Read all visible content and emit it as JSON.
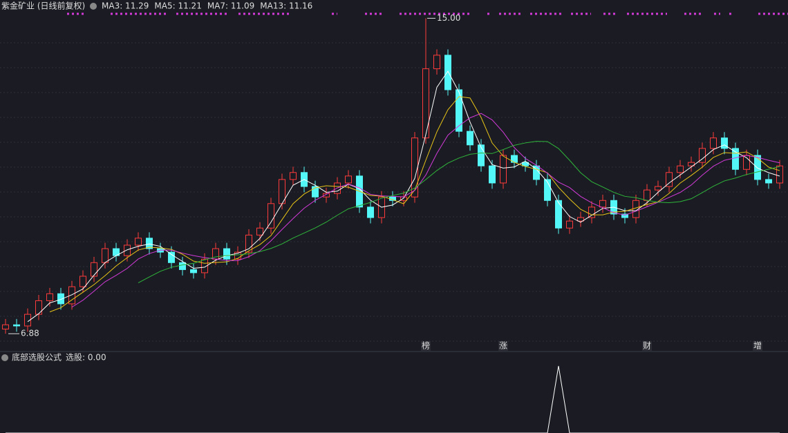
{
  "chart_data": {
    "type": "candlestick",
    "title": "紫金矿业 (日线前复权)",
    "ma_labels": [
      {
        "text": "MA3: 11.29",
        "window": 3,
        "color": "#ffffff"
      },
      {
        "text": "MA5: 11.21",
        "window": 5,
        "color": "#e8c417"
      },
      {
        "text": "MA7: 11.09",
        "window": 7,
        "color": "#d23ad8"
      },
      {
        "text": "MA13: 11.16",
        "window": 13,
        "color": "#2fb53a"
      }
    ],
    "up_color": "#ff3b3b",
    "down_color": "#54f7f7",
    "ylim": [
      6.44,
      15.47
    ],
    "open": [
      7.0,
      7.11,
      7.08,
      7.38,
      7.73,
      7.91,
      7.65,
      8.09,
      8.36,
      8.71,
      9.07,
      8.89,
      9.16,
      9.34,
      9.07,
      8.98,
      8.71,
      8.53,
      8.45,
      8.8,
      9.07,
      8.8,
      8.98,
      9.42,
      9.6,
      10.23,
      10.85,
      11.03,
      10.67,
      10.4,
      10.49,
      10.76,
      10.94,
      10.14,
      9.87,
      10.4,
      10.31,
      10.4,
      11.92,
      13.7,
      14.05,
      13.16,
      12.09,
      11.74,
      11.2,
      10.76,
      11.47,
      11.29,
      11.2,
      10.85,
      10.31,
      9.6,
      9.78,
      9.87,
      10.14,
      10.31,
      9.96,
      9.87,
      10.31,
      10.58,
      10.67,
      11.03,
      11.2,
      11.29,
      11.65,
      11.92,
      11.65,
      11.11,
      11.47,
      10.85,
      10.76
    ],
    "high": [
      7.26,
      7.26,
      7.53,
      7.88,
      8.06,
      8.06,
      8.24,
      8.51,
      8.86,
      9.22,
      9.22,
      9.31,
      9.49,
      9.49,
      9.22,
      9.13,
      8.86,
      8.68,
      8.95,
      9.22,
      9.22,
      9.13,
      9.57,
      9.75,
      10.38,
      11.0,
      11.18,
      11.18,
      10.82,
      10.64,
      10.91,
      11.09,
      11.09,
      10.29,
      10.55,
      10.55,
      10.55,
      12.07,
      15.0,
      14.2,
      14.2,
      13.31,
      12.24,
      11.89,
      11.35,
      11.62,
      11.62,
      11.44,
      11.35,
      11.0,
      10.46,
      9.93,
      10.02,
      10.29,
      10.46,
      10.46,
      10.11,
      10.46,
      10.73,
      10.82,
      11.18,
      11.35,
      11.44,
      11.8,
      12.07,
      12.07,
      11.8,
      11.62,
      11.62,
      11.0,
      11.35
    ],
    "low": [
      6.88,
      6.93,
      6.93,
      7.23,
      7.58,
      7.5,
      7.5,
      7.94,
      8.21,
      8.56,
      8.74,
      8.74,
      9.01,
      8.92,
      8.83,
      8.56,
      8.38,
      8.3,
      8.3,
      8.65,
      8.65,
      8.65,
      8.83,
      9.27,
      9.45,
      10.08,
      10.7,
      10.52,
      10.25,
      10.25,
      10.34,
      10.61,
      9.99,
      9.72,
      9.72,
      10.16,
      10.16,
      10.25,
      11.77,
      13.55,
      13.01,
      11.94,
      11.59,
      11.05,
      10.61,
      10.61,
      11.14,
      11.05,
      10.7,
      10.16,
      9.45,
      9.45,
      9.63,
      9.72,
      9.99,
      9.81,
      9.72,
      9.72,
      10.16,
      10.43,
      10.52,
      10.88,
      11.05,
      11.14,
      11.5,
      11.5,
      10.96,
      10.96,
      10.7,
      10.61,
      10.61
    ],
    "close": [
      7.11,
      7.08,
      7.38,
      7.73,
      7.91,
      7.65,
      8.09,
      8.36,
      8.71,
      9.07,
      8.89,
      9.16,
      9.34,
      9.07,
      8.98,
      8.71,
      8.53,
      8.45,
      8.8,
      9.07,
      8.8,
      8.98,
      9.42,
      9.6,
      10.23,
      10.85,
      11.03,
      10.67,
      10.4,
      10.49,
      10.76,
      10.94,
      10.14,
      9.87,
      10.4,
      10.31,
      10.4,
      11.92,
      13.7,
      14.05,
      13.16,
      12.09,
      11.74,
      11.2,
      10.76,
      11.47,
      11.29,
      11.2,
      10.85,
      10.31,
      9.6,
      9.78,
      9.87,
      10.14,
      10.31,
      9.96,
      9.87,
      10.31,
      10.58,
      10.67,
      11.03,
      11.2,
      11.29,
      11.65,
      11.92,
      11.65,
      11.11,
      11.47,
      10.85,
      10.76,
      11.2
    ],
    "max_label": "15.00",
    "min_label": "6.88",
    "events": [
      {
        "label": "榜",
        "at": 38,
        "color": "#e07a2a"
      },
      {
        "label": "涨",
        "at": 45,
        "color": "#e04040"
      },
      {
        "label": "财",
        "at": 58,
        "color": "#3a8fe0"
      },
      {
        "label": "增",
        "at": 68,
        "color": "#e04040"
      }
    ],
    "indicator": {
      "title": "底部选股公式",
      "label": "选股: 0.00",
      "ylim": [
        0,
        1
      ],
      "values": [
        0,
        0,
        0,
        0,
        0,
        0,
        0,
        0,
        0,
        0,
        0,
        0,
        0,
        0,
        0,
        0,
        0,
        0,
        0,
        0,
        0,
        0,
        0,
        0,
        0,
        0,
        0,
        0,
        0,
        0,
        0,
        0,
        0,
        0,
        0,
        0,
        0,
        0,
        0,
        0,
        0,
        0,
        0,
        0,
        0,
        0,
        0,
        0,
        0,
        0,
        1,
        0,
        0,
        0,
        0,
        0,
        0,
        0,
        0,
        0,
        0,
        0,
        0,
        0,
        0,
        0,
        0,
        0,
        0,
        0,
        0
      ]
    }
  }
}
